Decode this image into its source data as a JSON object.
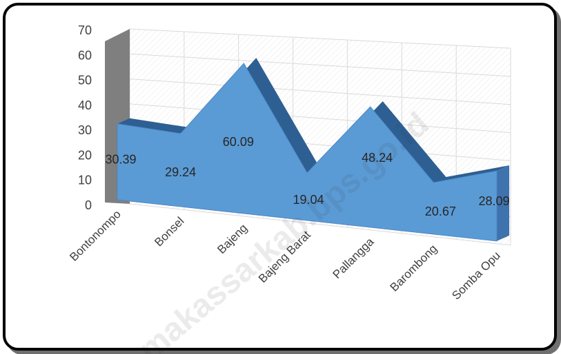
{
  "chart_data": {
    "type": "area",
    "title": "",
    "xlabel": "",
    "ylabel": "",
    "ylim": [
      0,
      70
    ],
    "yticks": [
      0,
      10,
      20,
      30,
      40,
      50,
      60,
      70
    ],
    "categories": [
      "Bontonompo",
      "Bonsel",
      "Bajeng",
      "Bajeng Barat",
      "Pallangga",
      "Barombong",
      "Somba Opu"
    ],
    "values": [
      30.39,
      29.24,
      60.09,
      19.04,
      48.24,
      20.67,
      28.09
    ],
    "data_labels": [
      "30.39",
      "29.24",
      "60.09",
      "19.04",
      "48.24",
      "20.67",
      "28.09"
    ],
    "grid": true,
    "style": "3d-area",
    "colors": {
      "area": "#5b9bd5",
      "area_top": "#2e5f92",
      "area_side": "#3f73ad",
      "grid": "#d9d9d9",
      "wall": "#7f7f7f"
    }
  },
  "watermark": "makassarkab.bps.go.id"
}
